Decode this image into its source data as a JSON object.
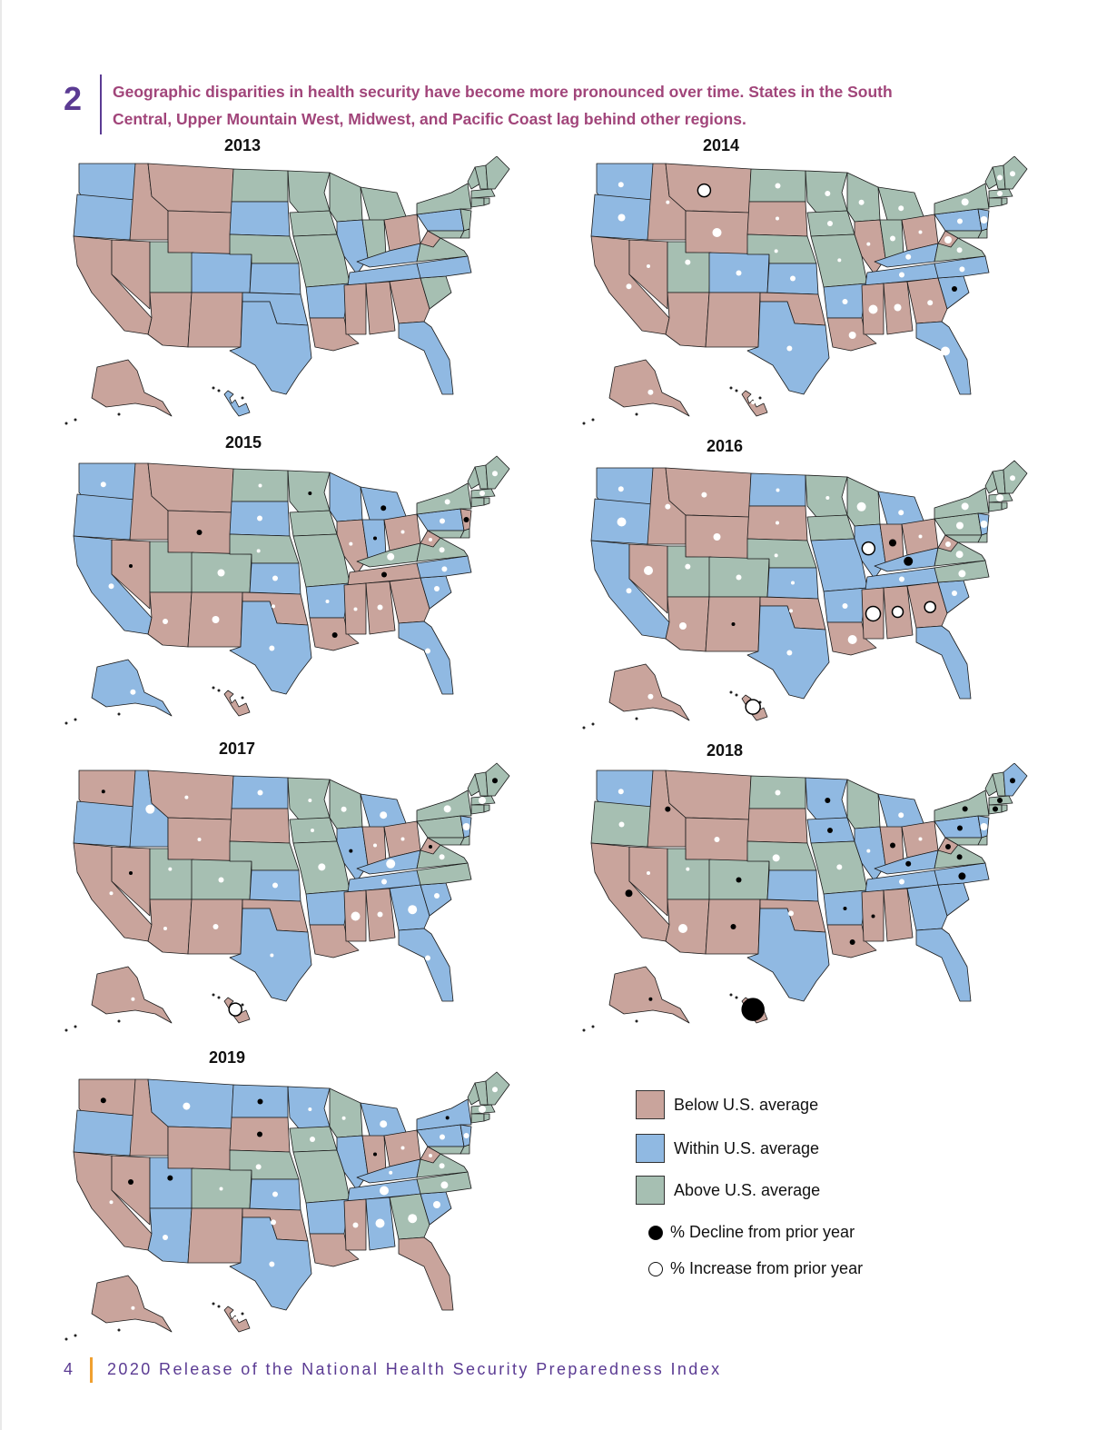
{
  "finding": {
    "number": "2",
    "text": "Geographic disparities in health security have become more pronounced over time. States in the South Central, Upper Mountain West, Midwest, and Pacific Coast lag behind other regions."
  },
  "colors": {
    "below": "#c9a49c",
    "within": "#90b9e2",
    "above": "#a6bfb2",
    "border": "#1a1a1a"
  },
  "maps": [
    {
      "year": "2013",
      "panel": "a"
    },
    {
      "year": "2014",
      "panel": "b"
    },
    {
      "year": "2015",
      "panel": "c"
    },
    {
      "year": "2016",
      "panel": "d"
    },
    {
      "year": "2017",
      "panel": "e"
    },
    {
      "year": "2018",
      "panel": "f"
    },
    {
      "year": "2019",
      "panel": "g"
    }
  ],
  "legend": {
    "below": "Below U.S. average",
    "within": "Within U.S. average",
    "above": "Above U.S. average",
    "decline": "% Decline from prior year",
    "increase": "% Increase from prior year"
  },
  "footer": {
    "page": "4",
    "title": "2020 Release of the National Health Security Preparedness Index"
  }
}
